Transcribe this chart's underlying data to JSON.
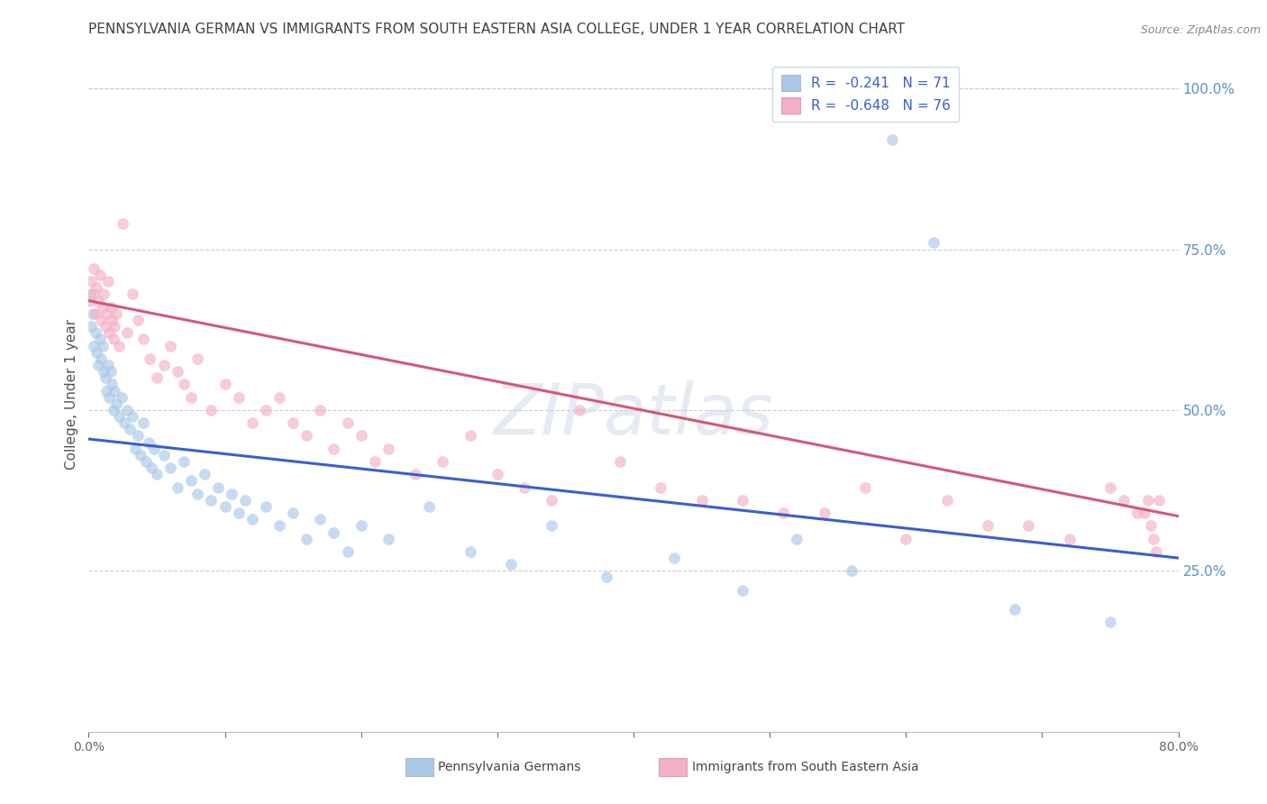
{
  "title": "PENNSYLVANIA GERMAN VS IMMIGRANTS FROM SOUTH EASTERN ASIA COLLEGE, UNDER 1 YEAR CORRELATION CHART",
  "source": "Source: ZipAtlas.com",
  "ylabel": "College, Under 1 year",
  "right_yticks": [
    "100.0%",
    "75.0%",
    "50.0%",
    "25.0%"
  ],
  "right_ytick_vals": [
    1.0,
    0.75,
    0.5,
    0.25
  ],
  "legend_entries": [
    {
      "label": "Pennsylvania Germans",
      "color": "#aac8e8",
      "R": "-0.241",
      "N": "71"
    },
    {
      "label": "Immigrants from South Eastern Asia",
      "color": "#f4b0c4",
      "R": "-0.648",
      "N": "76"
    }
  ],
  "watermark": "ZIPatlas",
  "blue_scatter_x": [
    0.001,
    0.002,
    0.003,
    0.004,
    0.005,
    0.006,
    0.007,
    0.008,
    0.009,
    0.01,
    0.011,
    0.012,
    0.013,
    0.014,
    0.015,
    0.016,
    0.017,
    0.018,
    0.019,
    0.02,
    0.022,
    0.024,
    0.026,
    0.028,
    0.03,
    0.032,
    0.034,
    0.036,
    0.038,
    0.04,
    0.042,
    0.044,
    0.046,
    0.048,
    0.05,
    0.055,
    0.06,
    0.065,
    0.07,
    0.075,
    0.08,
    0.085,
    0.09,
    0.095,
    0.1,
    0.105,
    0.11,
    0.115,
    0.12,
    0.13,
    0.14,
    0.15,
    0.16,
    0.17,
    0.18,
    0.19,
    0.2,
    0.22,
    0.25,
    0.28,
    0.31,
    0.34,
    0.38,
    0.43,
    0.48,
    0.52,
    0.56,
    0.59,
    0.62,
    0.68,
    0.75
  ],
  "blue_scatter_y": [
    0.68,
    0.63,
    0.65,
    0.6,
    0.62,
    0.59,
    0.57,
    0.61,
    0.58,
    0.6,
    0.56,
    0.55,
    0.53,
    0.57,
    0.52,
    0.56,
    0.54,
    0.5,
    0.53,
    0.51,
    0.49,
    0.52,
    0.48,
    0.5,
    0.47,
    0.49,
    0.44,
    0.46,
    0.43,
    0.48,
    0.42,
    0.45,
    0.41,
    0.44,
    0.4,
    0.43,
    0.41,
    0.38,
    0.42,
    0.39,
    0.37,
    0.4,
    0.36,
    0.38,
    0.35,
    0.37,
    0.34,
    0.36,
    0.33,
    0.35,
    0.32,
    0.34,
    0.3,
    0.33,
    0.31,
    0.28,
    0.32,
    0.3,
    0.35,
    0.28,
    0.26,
    0.32,
    0.24,
    0.27,
    0.22,
    0.3,
    0.25,
    0.92,
    0.76,
    0.19,
    0.17
  ],
  "pink_scatter_x": [
    0.001,
    0.002,
    0.003,
    0.004,
    0.005,
    0.006,
    0.007,
    0.008,
    0.009,
    0.01,
    0.011,
    0.012,
    0.013,
    0.014,
    0.015,
    0.016,
    0.017,
    0.018,
    0.019,
    0.02,
    0.022,
    0.025,
    0.028,
    0.032,
    0.036,
    0.04,
    0.045,
    0.05,
    0.055,
    0.06,
    0.065,
    0.07,
    0.075,
    0.08,
    0.09,
    0.1,
    0.11,
    0.12,
    0.13,
    0.14,
    0.15,
    0.16,
    0.17,
    0.18,
    0.19,
    0.2,
    0.21,
    0.22,
    0.24,
    0.26,
    0.28,
    0.3,
    0.32,
    0.34,
    0.36,
    0.39,
    0.42,
    0.45,
    0.48,
    0.51,
    0.54,
    0.57,
    0.6,
    0.63,
    0.66,
    0.69,
    0.72,
    0.75,
    0.76,
    0.77,
    0.775,
    0.778,
    0.78,
    0.782,
    0.784,
    0.786
  ],
  "pink_scatter_y": [
    0.67,
    0.7,
    0.68,
    0.72,
    0.65,
    0.69,
    0.67,
    0.71,
    0.64,
    0.66,
    0.68,
    0.63,
    0.65,
    0.7,
    0.62,
    0.66,
    0.64,
    0.61,
    0.63,
    0.65,
    0.6,
    0.79,
    0.62,
    0.68,
    0.64,
    0.61,
    0.58,
    0.55,
    0.57,
    0.6,
    0.56,
    0.54,
    0.52,
    0.58,
    0.5,
    0.54,
    0.52,
    0.48,
    0.5,
    0.52,
    0.48,
    0.46,
    0.5,
    0.44,
    0.48,
    0.46,
    0.42,
    0.44,
    0.4,
    0.42,
    0.46,
    0.4,
    0.38,
    0.36,
    0.5,
    0.42,
    0.38,
    0.36,
    0.36,
    0.34,
    0.34,
    0.38,
    0.3,
    0.36,
    0.32,
    0.32,
    0.3,
    0.38,
    0.36,
    0.34,
    0.34,
    0.36,
    0.32,
    0.3,
    0.28,
    0.36
  ],
  "blue_line_x": [
    0.0,
    0.8
  ],
  "blue_line_y": [
    0.455,
    0.27
  ],
  "pink_line_x": [
    0.0,
    0.8
  ],
  "pink_line_y": [
    0.67,
    0.335
  ],
  "xlim": [
    0.0,
    0.8
  ],
  "ylim": [
    0.0,
    1.05
  ],
  "scatter_size": 85,
  "scatter_alpha": 0.65,
  "blue_color": "#aac8e8",
  "pink_color": "#f4b0c4",
  "blue_line_color": "#3a5fcc",
  "pink_line_color": "#d45878",
  "grid_color": "#cccccc",
  "title_color": "#404040",
  "source_color": "#888888",
  "right_axis_color": "#5b8fc9"
}
